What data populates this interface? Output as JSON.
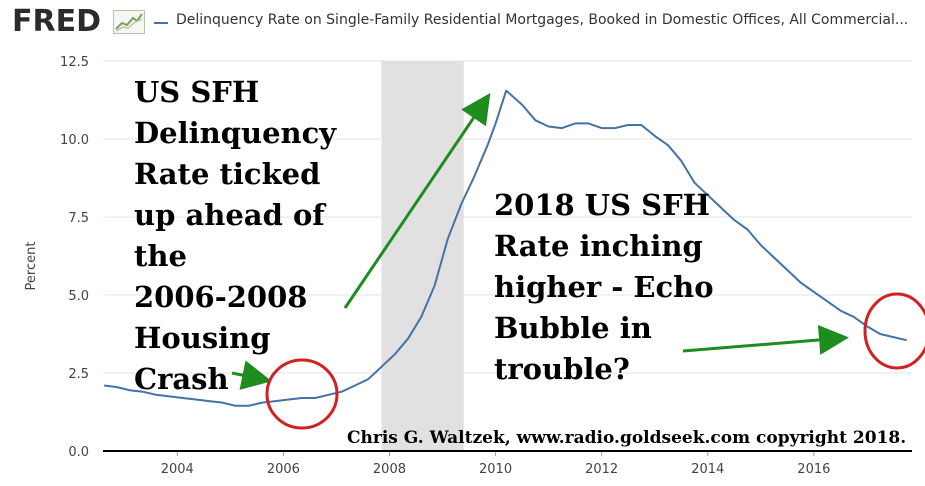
{
  "header": {
    "logo": "FRED",
    "series_title": "Delinquency Rate on Single-Family Residential Mortgages, Booked in Domestic Offices, All Commercial..."
  },
  "annotations": {
    "left_lines": [
      "US SFH",
      "Delinquency",
      "Rate ticked",
      "up ahead of",
      "the",
      "2006-2008",
      "Housing",
      "Crash"
    ],
    "right_lines": [
      "2018 US SFH",
      "Rate inching",
      "higher - Echo",
      "Bubble in",
      "trouble?"
    ],
    "credit": "Chris G. Waltzek, www.radio.goldseek.com copyright 2018."
  },
  "colors": {
    "series": "#4572a7",
    "recession": "#e1e1e1",
    "grid": "#dfe3e8",
    "arrow": "#1e8c1e",
    "circle": "#d32020"
  },
  "chart_data": {
    "type": "line",
    "ylabel": "Percent",
    "xlabel": "",
    "xlim": [
      2002.6,
      2017.85
    ],
    "ylim": [
      0,
      12.5
    ],
    "yticks": [
      0.0,
      2.5,
      5.0,
      7.5,
      10.0,
      12.5
    ],
    "ytick_labels": [
      "0.0",
      "2.5",
      "5.0",
      "7.5",
      "10.0",
      "12.5"
    ],
    "xticks": [
      2004,
      2006,
      2008,
      2010,
      2012,
      2014,
      2016
    ],
    "xtick_labels": [
      "2004",
      "2006",
      "2008",
      "2010",
      "2012",
      "2014",
      "2016"
    ],
    "grid": true,
    "recession_band": [
      2007.85,
      2009.4
    ],
    "series": [
      {
        "x": [
          2002.62,
          2002.85,
          2003.1,
          2003.35,
          2003.6,
          2003.85,
          2004.1,
          2004.35,
          2004.6,
          2004.85,
          2005.1,
          2005.35,
          2005.6,
          2005.85,
          2006.1,
          2006.35,
          2006.6,
          2006.85,
          2007.1,
          2007.35,
          2007.6,
          2007.85,
          2008.1,
          2008.35,
          2008.6,
          2008.85,
          2009.1,
          2009.35,
          2009.6,
          2009.85,
          2010.0,
          2010.2,
          2010.5,
          2010.75,
          2011.0,
          2011.25,
          2011.5,
          2011.75,
          2012.0,
          2012.25,
          2012.5,
          2012.75,
          2013.0,
          2013.25,
          2013.5,
          2013.75,
          2014.0,
          2014.25,
          2014.5,
          2014.75,
          2015.0,
          2015.25,
          2015.5,
          2015.75,
          2016.0,
          2016.25,
          2016.5,
          2016.75,
          2017.0,
          2017.25,
          2017.5,
          2017.75
        ],
        "y": [
          2.1,
          2.05,
          1.95,
          1.9,
          1.8,
          1.75,
          1.7,
          1.65,
          1.6,
          1.55,
          1.45,
          1.45,
          1.55,
          1.6,
          1.65,
          1.7,
          1.7,
          1.8,
          1.9,
          2.1,
          2.3,
          2.7,
          3.1,
          3.6,
          4.3,
          5.3,
          6.8,
          7.9,
          8.8,
          9.8,
          10.5,
          11.55,
          11.1,
          10.6,
          10.4,
          10.35,
          10.5,
          10.5,
          10.35,
          10.35,
          10.45,
          10.45,
          10.1,
          9.8,
          9.3,
          8.6,
          8.2,
          7.8,
          7.4,
          7.1,
          6.6,
          6.2,
          5.8,
          5.4,
          5.1,
          4.8,
          4.5,
          4.3,
          4.0,
          3.75,
          3.65,
          3.55
        ]
      }
    ]
  }
}
